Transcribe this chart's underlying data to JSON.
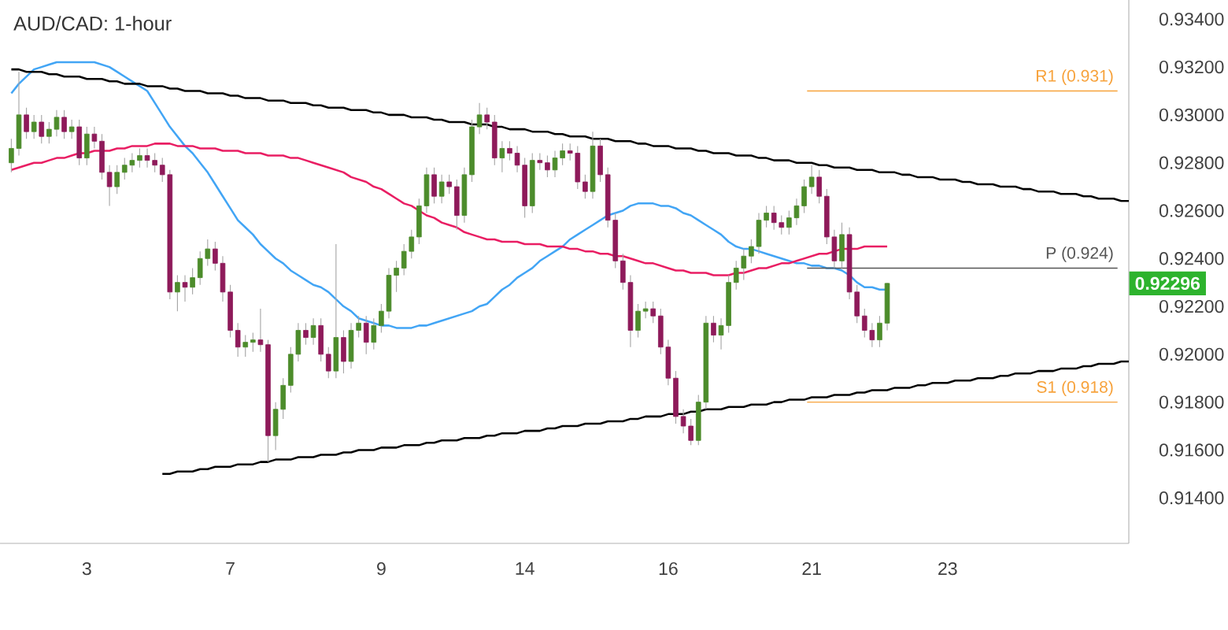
{
  "chart_data": {
    "type": "candlestick",
    "title": "AUD/CAD: 1-hour",
    "categories": [
      null,
      null,
      null,
      null,
      null,
      null,
      null,
      null,
      null,
      null,
      "3",
      null,
      null,
      null,
      null,
      null,
      null,
      null,
      null,
      null,
      null,
      null,
      null,
      null,
      null,
      null,
      null,
      null,
      null,
      "7",
      null,
      null,
      null,
      null,
      null,
      null,
      null,
      null,
      null,
      null,
      null,
      null,
      null,
      null,
      null,
      null,
      null,
      null,
      null,
      "9",
      null,
      null,
      null,
      null,
      null,
      null,
      null,
      null,
      null,
      null,
      null,
      null,
      null,
      null,
      null,
      null,
      null,
      null,
      "14",
      null,
      null,
      null,
      null,
      null,
      null,
      null,
      null,
      null,
      null,
      null,
      null,
      null,
      null,
      null,
      null,
      null,
      null,
      "16",
      null,
      null,
      null,
      null,
      null,
      null,
      null,
      null,
      null,
      null,
      null,
      null,
      null,
      null,
      null,
      null,
      null,
      null,
      "21",
      null,
      null,
      null,
      null,
      null,
      null,
      null,
      null,
      null,
      null,
      null,
      null,
      null,
      null,
      null,
      null,
      null,
      "23",
      null,
      null,
      null,
      null,
      null,
      null,
      null,
      null,
      null,
      null,
      null,
      null,
      null,
      null,
      null,
      null,
      null,
      null,
      null,
      null,
      null,
      null,
      null,
      null
    ],
    "ylim": [
      0.9121,
      0.9348
    ],
    "yticks": [
      {
        "value": 0.914,
        "label": "0.91400"
      },
      {
        "value": 0.916,
        "label": "0.91600"
      },
      {
        "value": 0.918,
        "label": "0.91800"
      },
      {
        "value": 0.92,
        "label": "0.92000"
      },
      {
        "value": 0.922,
        "label": "0.92200"
      },
      {
        "value": 0.924,
        "label": "0.92400"
      },
      {
        "value": 0.926,
        "label": "0.92600"
      },
      {
        "value": 0.928,
        "label": "0.92800"
      },
      {
        "value": 0.93,
        "label": "0.93000"
      },
      {
        "value": 0.932,
        "label": "0.93200"
      },
      {
        "value": 0.934,
        "label": "0.93400"
      }
    ],
    "ohlc": [
      [
        0.928,
        0.929,
        0.9276,
        0.9286
      ],
      [
        0.9286,
        0.9318,
        0.9283,
        0.93
      ],
      [
        0.93,
        0.9303,
        0.929,
        0.9293
      ],
      [
        0.9293,
        0.93,
        0.929,
        0.9297
      ],
      [
        0.9297,
        0.93,
        0.9288,
        0.9291
      ],
      [
        0.9291,
        0.9297,
        0.9288,
        0.9294
      ],
      [
        0.9294,
        0.9302,
        0.9291,
        0.9299
      ],
      [
        0.9299,
        0.9302,
        0.929,
        0.9293
      ],
      [
        0.9293,
        0.9298,
        0.929,
        0.9295
      ],
      [
        0.9295,
        0.9298,
        0.9279,
        0.9282
      ],
      [
        0.9282,
        0.9295,
        0.9279,
        0.9292
      ],
      [
        0.9292,
        0.9295,
        0.9286,
        0.9289
      ],
      [
        0.9289,
        0.9292,
        0.9273,
        0.9276
      ],
      [
        0.9276,
        0.9279,
        0.9262,
        0.927
      ],
      [
        0.927,
        0.9279,
        0.9267,
        0.9276
      ],
      [
        0.9276,
        0.9282,
        0.9273,
        0.9279
      ],
      [
        0.9279,
        0.9284,
        0.9276,
        0.9281
      ],
      [
        0.9281,
        0.9286,
        0.9278,
        0.9283
      ],
      [
        0.9283,
        0.9286,
        0.9278,
        0.9281
      ],
      [
        0.9281,
        0.9284,
        0.9276,
        0.9279
      ],
      [
        0.9279,
        0.9282,
        0.9272,
        0.9275
      ],
      [
        0.9275,
        0.9277,
        0.9223,
        0.9226
      ],
      [
        0.9226,
        0.9233,
        0.9218,
        0.923
      ],
      [
        0.923,
        0.9233,
        0.9222,
        0.9228
      ],
      [
        0.9228,
        0.9236,
        0.9225,
        0.9232
      ],
      [
        0.9232,
        0.9243,
        0.9229,
        0.924
      ],
      [
        0.924,
        0.9248,
        0.9237,
        0.9244
      ],
      [
        0.9244,
        0.9247,
        0.9235,
        0.9238
      ],
      [
        0.9238,
        0.9241,
        0.9222,
        0.9226
      ],
      [
        0.9226,
        0.9229,
        0.9207,
        0.921
      ],
      [
        0.921,
        0.9213,
        0.9199,
        0.9203
      ],
      [
        0.9203,
        0.9208,
        0.9199,
        0.9205
      ],
      [
        0.9205,
        0.9209,
        0.9201,
        0.9206
      ],
      [
        0.9206,
        0.9219,
        0.9201,
        0.9204
      ],
      [
        0.9204,
        0.9206,
        0.9155,
        0.9166
      ],
      [
        0.9166,
        0.918,
        0.916,
        0.9177
      ],
      [
        0.9177,
        0.919,
        0.9173,
        0.9187
      ],
      [
        0.9187,
        0.9203,
        0.9184,
        0.92
      ],
      [
        0.92,
        0.9213,
        0.9197,
        0.921
      ],
      [
        0.921,
        0.9213,
        0.9204,
        0.9207
      ],
      [
        0.9207,
        0.9215,
        0.9204,
        0.9212
      ],
      [
        0.9212,
        0.9215,
        0.9197,
        0.92
      ],
      [
        0.92,
        0.9203,
        0.919,
        0.9193
      ],
      [
        0.9193,
        0.9246,
        0.919,
        0.9207
      ],
      [
        0.9207,
        0.921,
        0.9192,
        0.9197
      ],
      [
        0.9197,
        0.9213,
        0.9194,
        0.921
      ],
      [
        0.921,
        0.9216,
        0.9207,
        0.9213
      ],
      [
        0.9213,
        0.9216,
        0.92,
        0.9205
      ],
      [
        0.9205,
        0.9215,
        0.9202,
        0.9212
      ],
      [
        0.9212,
        0.9221,
        0.9209,
        0.9218
      ],
      [
        0.9218,
        0.9236,
        0.9215,
        0.9233
      ],
      [
        0.9233,
        0.9239,
        0.9226,
        0.9236
      ],
      [
        0.9236,
        0.9246,
        0.9233,
        0.9243
      ],
      [
        0.9243,
        0.9252,
        0.924,
        0.9249
      ],
      [
        0.9249,
        0.9265,
        0.9246,
        0.9262
      ],
      [
        0.9262,
        0.9278,
        0.9259,
        0.9275
      ],
      [
        0.9275,
        0.9278,
        0.9263,
        0.9266
      ],
      [
        0.9266,
        0.9275,
        0.9263,
        0.9272
      ],
      [
        0.9272,
        0.9275,
        0.9267,
        0.927
      ],
      [
        0.927,
        0.9273,
        0.9252,
        0.9258
      ],
      [
        0.9258,
        0.9278,
        0.9255,
        0.9275
      ],
      [
        0.9275,
        0.9298,
        0.9272,
        0.9295
      ],
      [
        0.9295,
        0.9305,
        0.9292,
        0.93
      ],
      [
        0.93,
        0.9303,
        0.9294,
        0.9297
      ],
      [
        0.9297,
        0.93,
        0.9279,
        0.9282
      ],
      [
        0.9282,
        0.9289,
        0.9276,
        0.9286
      ],
      [
        0.9286,
        0.9289,
        0.9281,
        0.9284
      ],
      [
        0.9284,
        0.9287,
        0.9276,
        0.9279
      ],
      [
        0.9279,
        0.9282,
        0.9257,
        0.9262
      ],
      [
        0.9262,
        0.9284,
        0.9259,
        0.9281
      ],
      [
        0.9281,
        0.9284,
        0.9277,
        0.928
      ],
      [
        0.928,
        0.9283,
        0.9274,
        0.9277
      ],
      [
        0.9277,
        0.9285,
        0.9274,
        0.9282
      ],
      [
        0.9282,
        0.9288,
        0.9279,
        0.9285
      ],
      [
        0.9285,
        0.9288,
        0.9281,
        0.9284
      ],
      [
        0.9284,
        0.9287,
        0.9269,
        0.9272
      ],
      [
        0.9272,
        0.9275,
        0.9265,
        0.9268
      ],
      [
        0.9268,
        0.9293,
        0.9265,
        0.9287
      ],
      [
        0.9287,
        0.929,
        0.9272,
        0.9275
      ],
      [
        0.9275,
        0.9278,
        0.9253,
        0.9256
      ],
      [
        0.9256,
        0.9259,
        0.9236,
        0.9239
      ],
      [
        0.9239,
        0.9242,
        0.9227,
        0.923
      ],
      [
        0.923,
        0.9233,
        0.9203,
        0.921
      ],
      [
        0.921,
        0.9221,
        0.9207,
        0.9218
      ],
      [
        0.9218,
        0.9222,
        0.9215,
        0.9219
      ],
      [
        0.9219,
        0.9222,
        0.9213,
        0.9216
      ],
      [
        0.9216,
        0.9219,
        0.92,
        0.9203
      ],
      [
        0.9203,
        0.9206,
        0.9187,
        0.919
      ],
      [
        0.919,
        0.9193,
        0.9171,
        0.9174
      ],
      [
        0.9174,
        0.9177,
        0.9167,
        0.917
      ],
      [
        0.917,
        0.9173,
        0.9162,
        0.9164
      ],
      [
        0.9164,
        0.9183,
        0.9162,
        0.918
      ],
      [
        0.918,
        0.9216,
        0.9177,
        0.9213
      ],
      [
        0.9213,
        0.9216,
        0.9205,
        0.9208
      ],
      [
        0.9208,
        0.9215,
        0.9202,
        0.9212
      ],
      [
        0.9212,
        0.9233,
        0.9209,
        0.923
      ],
      [
        0.923,
        0.9239,
        0.9227,
        0.9236
      ],
      [
        0.9236,
        0.9244,
        0.9231,
        0.9241
      ],
      [
        0.9241,
        0.9248,
        0.9238,
        0.9245
      ],
      [
        0.9245,
        0.9259,
        0.9242,
        0.9256
      ],
      [
        0.9256,
        0.9262,
        0.9253,
        0.9259
      ],
      [
        0.9259,
        0.9262,
        0.9252,
        0.9255
      ],
      [
        0.9255,
        0.9258,
        0.925,
        0.9253
      ],
      [
        0.9253,
        0.926,
        0.925,
        0.9257
      ],
      [
        0.9257,
        0.9265,
        0.9254,
        0.9262
      ],
      [
        0.9262,
        0.9273,
        0.9259,
        0.927
      ],
      [
        0.927,
        0.9279,
        0.9267,
        0.9274
      ],
      [
        0.9274,
        0.9277,
        0.9263,
        0.9266
      ],
      [
        0.9266,
        0.9269,
        0.9246,
        0.9249
      ],
      [
        0.9249,
        0.9252,
        0.9236,
        0.9239
      ],
      [
        0.9239,
        0.9255,
        0.9236,
        0.925
      ],
      [
        0.925,
        0.9253,
        0.9223,
        0.9226
      ],
      [
        0.9226,
        0.9229,
        0.9213,
        0.9216
      ],
      [
        0.9216,
        0.9219,
        0.9207,
        0.921
      ],
      [
        0.921,
        0.9213,
        0.9203,
        0.9206
      ],
      [
        0.9206,
        0.9216,
        0.9203,
        0.9213
      ],
      [
        0.9213,
        0.92299,
        0.921,
        0.92296
      ],
      null,
      null,
      null,
      null,
      null,
      null,
      null,
      null,
      null,
      null,
      null,
      null,
      null,
      null,
      null,
      null,
      null,
      null,
      null,
      null,
      null,
      null,
      null,
      null,
      null,
      null,
      null,
      null,
      null,
      null,
      null,
      null
    ],
    "series": [
      {
        "type": "line",
        "color": "#42a5f5",
        "values": [
          0.9309,
          0.9313,
          0.9316,
          0.9319,
          0.932,
          0.9321,
          0.9322,
          0.9322,
          0.9322,
          0.9322,
          0.9322,
          0.9322,
          0.9321,
          0.932,
          0.9318,
          0.9316,
          0.9314,
          0.9312,
          0.931,
          0.9305,
          0.93,
          0.9295,
          0.9291,
          0.9287,
          0.9284,
          0.928,
          0.9276,
          0.9271,
          0.9266,
          0.9261,
          0.9256,
          0.9253,
          0.925,
          0.9246,
          0.9243,
          0.924,
          0.9238,
          0.9235,
          0.9233,
          0.9231,
          0.9229,
          0.9228,
          0.9226,
          0.9223,
          0.922,
          0.9218,
          0.9215,
          0.9214,
          0.9213,
          0.9212,
          0.9212,
          0.9211,
          0.9211,
          0.9211,
          0.9212,
          0.9212,
          0.9213,
          0.9214,
          0.9215,
          0.9216,
          0.9217,
          0.9218,
          0.922,
          0.9221,
          0.9224,
          0.9227,
          0.9229,
          0.9232,
          0.9234,
          0.9236,
          0.9239,
          0.9241,
          0.9243,
          0.9245,
          0.9248,
          0.925,
          0.9252,
          0.9254,
          0.9256,
          0.9258,
          0.9259,
          0.926,
          0.9262,
          0.9263,
          0.9263,
          0.9263,
          0.9262,
          0.9262,
          0.9261,
          0.9259,
          0.9258,
          0.9256,
          0.9254,
          0.9252,
          0.925,
          0.9247,
          0.9245,
          0.9244,
          0.9244,
          0.9243,
          0.9242,
          0.9241,
          0.924,
          0.9239,
          0.9238,
          0.9238,
          0.9237,
          0.9237,
          0.9236,
          0.9236,
          0.9235,
          0.9233,
          0.923,
          0.9228,
          0.9228,
          0.9227,
          0.9227,
          null,
          null,
          null,
          null,
          null,
          null,
          null,
          null,
          null,
          null,
          null,
          null,
          null,
          null,
          null,
          null,
          null,
          null,
          null,
          null,
          null,
          null,
          null,
          null,
          null,
          null,
          null,
          null,
          null,
          null,
          null,
          null
        ]
      },
      {
        "type": "line",
        "color": "#e91e63",
        "values": [
          0.9277,
          0.9278,
          0.9279,
          0.928,
          0.928,
          0.9281,
          0.9282,
          0.9282,
          0.9283,
          0.9284,
          0.9284,
          0.9285,
          0.9285,
          0.9285,
          0.9286,
          0.9286,
          0.9287,
          0.9287,
          0.9287,
          0.9288,
          0.9288,
          0.9288,
          0.9287,
          0.9287,
          0.9287,
          0.9286,
          0.9286,
          0.9286,
          0.9285,
          0.9285,
          0.9285,
          0.9284,
          0.9284,
          0.9284,
          0.9283,
          0.9283,
          0.9283,
          0.9282,
          0.9282,
          0.9281,
          0.928,
          0.9279,
          0.9278,
          0.9277,
          0.9276,
          0.9274,
          0.9273,
          0.9272,
          0.927,
          0.9269,
          0.9267,
          0.9265,
          0.9263,
          0.9262,
          0.926,
          0.9258,
          0.9257,
          0.9255,
          0.9254,
          0.9253,
          0.9251,
          0.925,
          0.9249,
          0.9248,
          0.9248,
          0.9247,
          0.9247,
          0.9247,
          0.9246,
          0.9246,
          0.9246,
          0.9245,
          0.9245,
          0.9245,
          0.9244,
          0.9244,
          0.9243,
          0.9243,
          0.9242,
          0.9242,
          0.9241,
          0.9241,
          0.924,
          0.9239,
          0.9238,
          0.9238,
          0.9237,
          0.9236,
          0.9235,
          0.9235,
          0.9234,
          0.9234,
          0.9234,
          0.9233,
          0.9233,
          0.9233,
          0.9234,
          0.9234,
          0.9235,
          0.9236,
          0.9236,
          0.9237,
          0.9238,
          0.9238,
          0.9239,
          0.924,
          0.9241,
          0.9242,
          0.9242,
          0.9243,
          0.9244,
          0.9244,
          0.9244,
          0.9245,
          0.9245,
          0.9245,
          0.9245,
          null,
          null,
          null,
          null,
          null,
          null,
          null,
          null,
          null,
          null,
          null,
          null,
          null,
          null,
          null,
          null,
          null,
          null,
          null,
          null,
          null,
          null,
          null,
          null,
          null,
          null,
          null,
          null,
          null,
          null,
          null,
          null
        ]
      },
      {
        "type": "line",
        "color": "#000000",
        "values": [
          0.9319,
          0.9319,
          0.9318,
          0.9318,
          0.9318,
          0.9317,
          0.9317,
          0.9316,
          0.9316,
          0.9316,
          0.9315,
          0.9315,
          0.9315,
          0.9314,
          0.9314,
          0.9313,
          0.9313,
          0.9313,
          0.9312,
          0.9312,
          0.9312,
          0.9311,
          0.9311,
          0.931,
          0.931,
          0.931,
          0.9309,
          0.9309,
          0.9309,
          0.9308,
          0.9308,
          0.9307,
          0.9307,
          0.9307,
          0.9306,
          0.9306,
          0.9306,
          0.9305,
          0.9305,
          0.9305,
          0.9304,
          0.9304,
          0.9303,
          0.9303,
          0.9303,
          0.9302,
          0.9302,
          0.9302,
          0.9301,
          0.9301,
          0.93,
          0.93,
          0.93,
          0.9299,
          0.9299,
          0.9299,
          0.9298,
          0.9298,
          0.9297,
          0.9297,
          0.9297,
          0.9296,
          0.9296,
          0.9296,
          0.9295,
          0.9295,
          0.9294,
          0.9294,
          0.9294,
          0.9293,
          0.9293,
          0.9293,
          0.9292,
          0.9292,
          0.9291,
          0.9291,
          0.9291,
          0.929,
          0.929,
          0.929,
          0.9289,
          0.9289,
          0.9289,
          0.9288,
          0.9288,
          0.9287,
          0.9287,
          0.9287,
          0.9286,
          0.9286,
          0.9286,
          0.9285,
          0.9285,
          0.9284,
          0.9284,
          0.9284,
          0.9283,
          0.9283,
          0.9283,
          0.9282,
          0.9282,
          0.9281,
          0.9281,
          0.9281,
          0.928,
          0.928,
          0.928,
          0.9279,
          0.9279,
          0.9278,
          0.9278,
          0.9278,
          0.9277,
          0.9277,
          0.9277,
          0.9276,
          0.9276,
          0.9276,
          0.9275,
          0.9275,
          0.9274,
          0.9274,
          0.9274,
          0.9273,
          0.9273,
          0.9273,
          0.9272,
          0.9272,
          0.9271,
          0.9271,
          0.9271,
          0.927,
          0.927,
          0.927,
          0.9269,
          0.9269,
          0.9268,
          0.9268,
          0.9268,
          0.9267,
          0.9267,
          0.9267,
          0.9266,
          0.9266,
          0.9265,
          0.9265,
          0.9265,
          0.9264,
          0.9264
        ]
      },
      {
        "type": "line",
        "color": "#000000",
        "values": [
          null,
          null,
          null,
          null,
          null,
          null,
          null,
          null,
          null,
          null,
          null,
          null,
          null,
          null,
          null,
          null,
          null,
          null,
          null,
          null,
          0.915,
          0.915,
          0.9151,
          0.9151,
          0.9151,
          0.9152,
          0.9152,
          0.9153,
          0.9153,
          0.9153,
          0.9154,
          0.9154,
          0.9154,
          0.9155,
          0.9155,
          0.9156,
          0.9156,
          0.9156,
          0.9157,
          0.9157,
          0.9157,
          0.9158,
          0.9158,
          0.9158,
          0.9159,
          0.9159,
          0.916,
          0.916,
          0.916,
          0.9161,
          0.9161,
          0.9161,
          0.9162,
          0.9162,
          0.9162,
          0.9163,
          0.9163,
          0.9164,
          0.9164,
          0.9164,
          0.9165,
          0.9165,
          0.9165,
          0.9166,
          0.9166,
          0.9167,
          0.9167,
          0.9167,
          0.9168,
          0.9168,
          0.9168,
          0.9169,
          0.9169,
          0.917,
          0.917,
          0.917,
          0.9171,
          0.9171,
          0.9171,
          0.9172,
          0.9172,
          0.9172,
          0.9173,
          0.9173,
          0.9174,
          0.9174,
          0.9174,
          0.9175,
          0.9175,
          0.9175,
          0.9176,
          0.9176,
          0.9177,
          0.9177,
          0.9177,
          0.9178,
          0.9178,
          0.9178,
          0.9179,
          0.9179,
          0.9179,
          0.918,
          0.918,
          0.9181,
          0.9181,
          0.9181,
          0.9182,
          0.9182,
          0.9182,
          0.9183,
          0.9183,
          0.9183,
          0.9184,
          0.9184,
          0.9185,
          0.9185,
          0.9185,
          0.9186,
          0.9186,
          0.9186,
          0.9187,
          0.9187,
          0.9188,
          0.9188,
          0.9188,
          0.9189,
          0.9189,
          0.9189,
          0.919,
          0.919,
          0.919,
          0.9191,
          0.9191,
          0.9192,
          0.9192,
          0.9192,
          0.9193,
          0.9193,
          0.9193,
          0.9194,
          0.9194,
          0.9194,
          0.9195,
          0.9195,
          0.9196,
          0.9196,
          0.9196,
          0.9197,
          0.9197
        ]
      }
    ],
    "ref_lines": [
      {
        "axis": "y",
        "value": 0.931,
        "label": "R1 (0.931)",
        "color": "#f7a23b"
      },
      {
        "axis": "y",
        "value": 0.9236,
        "label": "P (0.924)",
        "color": "#555555"
      },
      {
        "axis": "y",
        "value": 0.918,
        "label": "S1 (0.918)",
        "color": "#f7a23b"
      }
    ],
    "annotations": [
      "0.92296"
    ]
  }
}
